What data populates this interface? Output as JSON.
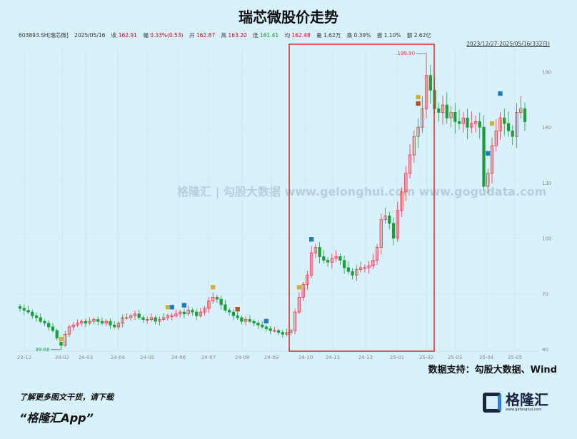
{
  "title": "瑞芯微股价走势",
  "info": {
    "code": "603893.SH[瑞芯微]",
    "date": "2025/05/16",
    "close_label": "收",
    "close": "162.91",
    "change_label": "幅",
    "change": "0.33%(0.53)",
    "open_label": "开",
    "open": "162.87",
    "high_label": "高",
    "high": "163.20",
    "low_label": "低",
    "low": "161.41",
    "avg_label": "均",
    "avg": "162.48",
    "vol_label": "量",
    "vol": "1.62万",
    "turnover_label": "换",
    "turnover": "0.39%",
    "amp_label": "振",
    "amp": "1.10%",
    "amount_label": "额",
    "amount": "2.62亿"
  },
  "range": "2023/12/27-2025/05/16(332日)",
  "watermark": "格隆汇 | 勾股大数据 www.gelonghui.com www.gogudata.com",
  "source": "数据支持：勾股大数据、Wind",
  "promo": {
    "line1": "了解更多图文干货，请下载",
    "line2": "“格隆汇App”"
  },
  "logo": {
    "name": "格隆汇",
    "url": "www.gelonghui.com"
  },
  "colors": {
    "up": "#e8343a",
    "down": "#1b9e3a",
    "highlight_box": "#e03030",
    "marker_yellow": "#c9b24a",
    "marker_blue": "#1f7bc0",
    "marker_brown": "#b0562a"
  },
  "chart_data": {
    "type": "candlestick",
    "title": "瑞芯微股价走势",
    "ylim": [
      38,
      202
    ],
    "y_ticks": [
      40,
      70,
      100,
      130,
      160,
      190
    ],
    "x_ticks": [
      "23-12",
      "24-02",
      "24-03",
      "24-04",
      "24-05",
      "24-06",
      "24-07",
      "24-08",
      "24-09",
      "24-10",
      "24-11",
      "24-12",
      "25-01",
      "25-02",
      "25-03",
      "25-04",
      "25-05"
    ],
    "grid": true,
    "closes": [
      62,
      61,
      60,
      58,
      57,
      55,
      54,
      52,
      50,
      46,
      42,
      48,
      52,
      53,
      54,
      55,
      54,
      55,
      56,
      55,
      54,
      55,
      53,
      52,
      54,
      57,
      57,
      58,
      59,
      57,
      56,
      56,
      57,
      55,
      56,
      57,
      58,
      58,
      59,
      60,
      59,
      61,
      60,
      58,
      60,
      62,
      66,
      68,
      67,
      64,
      61,
      60,
      58,
      57,
      55,
      56,
      55,
      54,
      53,
      52,
      51,
      50,
      50,
      49,
      48,
      49,
      50,
      60,
      68,
      75,
      80,
      92,
      95,
      90,
      88,
      87,
      89,
      90,
      88,
      84,
      82,
      80,
      83,
      84,
      84,
      85,
      88,
      95,
      110,
      112,
      108,
      100,
      115,
      125,
      135,
      145,
      155,
      160,
      170,
      188,
      180,
      170,
      168,
      172,
      165,
      168,
      163,
      162,
      165,
      160,
      162,
      163,
      160,
      128,
      135,
      150,
      158,
      165,
      162,
      158,
      155,
      168,
      170,
      163
    ],
    "annotations": [
      {
        "label": "199.90",
        "type": "max",
        "value": 199.9
      },
      {
        "label": "39.68",
        "type": "min",
        "value": 39.68
      }
    ],
    "markers": [
      {
        "i": 10,
        "c": "yellow"
      },
      {
        "i": 36,
        "c": "yellow"
      },
      {
        "i": 37,
        "c": "blue"
      },
      {
        "i": 40,
        "c": "blue"
      },
      {
        "i": 47,
        "c": "yellow"
      },
      {
        "i": 53,
        "c": "brown"
      },
      {
        "i": 60,
        "c": "blue"
      },
      {
        "i": 68,
        "c": "yellow"
      },
      {
        "i": 71,
        "c": "blue"
      },
      {
        "i": 97,
        "c": "brown"
      },
      {
        "i": 97,
        "c": "yellow"
      },
      {
        "i": 114,
        "c": "blue"
      },
      {
        "i": 115,
        "c": "yellow"
      },
      {
        "i": 117,
        "c": "blue"
      }
    ]
  }
}
